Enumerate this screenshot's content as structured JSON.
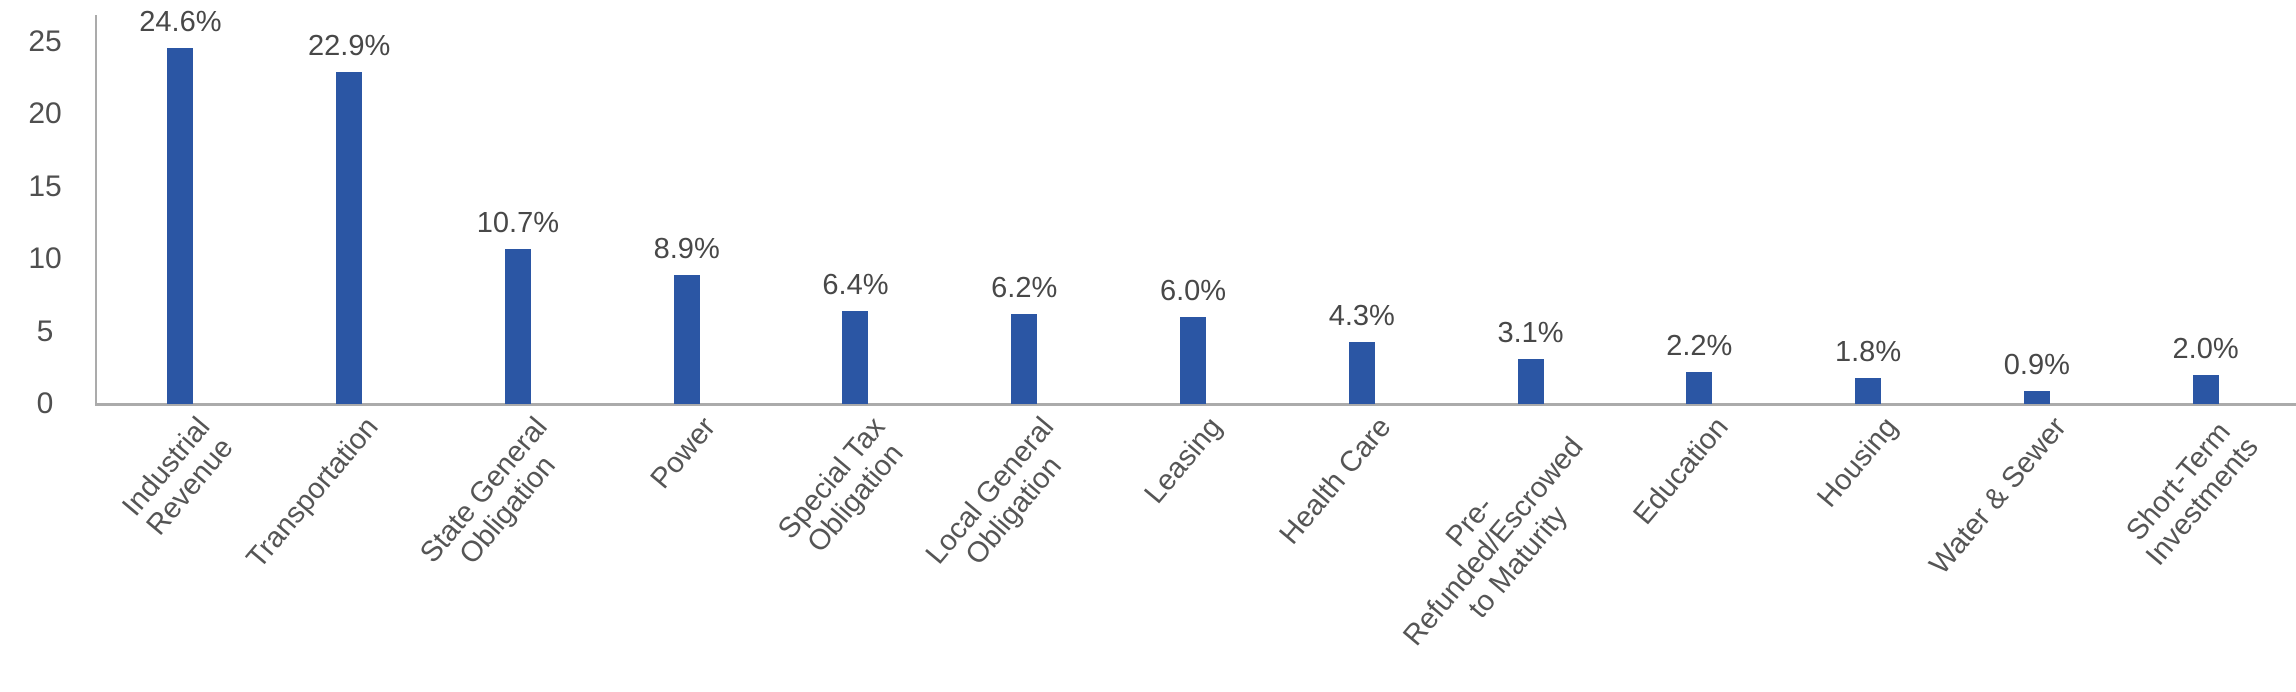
{
  "chart_data": {
    "type": "bar",
    "title": "",
    "categories": [
      [
        "Industrial",
        "Revenue"
      ],
      [
        "Transportation"
      ],
      [
        "State General",
        "Obligation"
      ],
      [
        "Power"
      ],
      [
        "Special Tax",
        "Obligation"
      ],
      [
        "Local General",
        "Obligation"
      ],
      [
        "Leasing"
      ],
      [
        "Health Care"
      ],
      [
        "Pre-",
        "Refunded/Escrowed",
        "to Maturity"
      ],
      [
        "Education"
      ],
      [
        "Housing"
      ],
      [
        "Water & Sewer"
      ],
      [
        "Short-Term",
        "Investments"
      ]
    ],
    "values": [
      24.6,
      22.9,
      10.7,
      8.9,
      6.4,
      6.2,
      6.0,
      4.3,
      3.1,
      2.2,
      1.8,
      0.9,
      2.0
    ],
    "value_labels": [
      "24.6%",
      "22.9%",
      "10.7%",
      "8.9%",
      "6.4%",
      "6.2%",
      "6.0%",
      "4.3%",
      "3.1%",
      "2.2%",
      "1.8%",
      "0.9%",
      "2.0%"
    ],
    "yticks": [
      0,
      5,
      10,
      15,
      20,
      25
    ],
    "ylim": [
      0,
      25
    ],
    "xlabel": "",
    "ylabel": "",
    "grid": false,
    "legend": null,
    "category_label_rotation_deg": -50,
    "bar_color": "#2b56a4",
    "axis_color": "#ababab",
    "value_label_color": "#484848",
    "tick_label_color": "#4f4f4f",
    "category_label_color": "#555555",
    "background_color": "#ffffff"
  }
}
